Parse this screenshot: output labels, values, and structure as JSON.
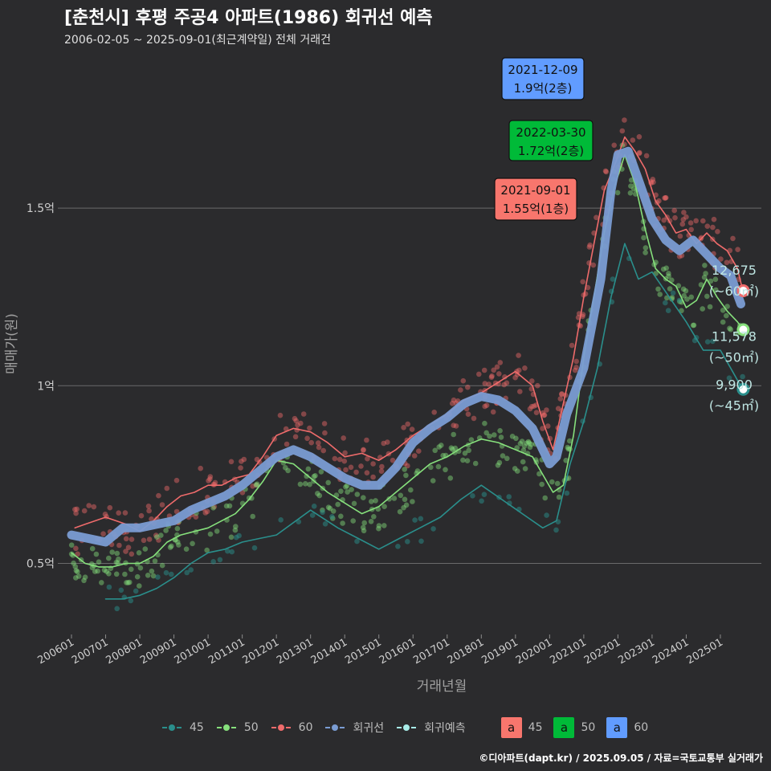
{
  "header": {
    "title": "[춘천시] 후평 주공4 아파트(1986) 회귀선 예측",
    "subtitle": "2006-02-05 ~ 2025-09-01(최근계약일) 전체 거래건"
  },
  "credit": "©디아파트(dapt.kr) / 2025.09.05 / 자료=국토교통부 실거래가",
  "legend": {
    "lines": [
      {
        "label": "45",
        "color": "#2a8f8c"
      },
      {
        "label": "50",
        "color": "#86e07c"
      },
      {
        "label": "60",
        "color": "#ef6b6b"
      },
      {
        "label": "회귀선",
        "color": "#7a9cd3"
      },
      {
        "label": "회귀예측",
        "color": "#a8ece8"
      }
    ],
    "boxes": [
      {
        "glyph": "a",
        "label": "45",
        "color": "#f8766d"
      },
      {
        "glyph": "a",
        "label": "50",
        "color": "#00ba38"
      },
      {
        "glyph": "a",
        "label": "60",
        "color": "#619cff"
      }
    ]
  },
  "chart_data": {
    "type": "line",
    "xlabel": "거래년월",
    "ylabel": "매매가(원)",
    "x_range": [
      2005.6,
      2026.2
    ],
    "ylim": [
      0.3,
      1.95
    ],
    "y_ticks": [
      {
        "value": 0.5,
        "label": "0.5억"
      },
      {
        "value": 1.0,
        "label": "1억"
      },
      {
        "value": 1.5,
        "label": "1.5억"
      }
    ],
    "x_ticks": [
      {
        "value": 2006,
        "label": "200601"
      },
      {
        "value": 2007,
        "label": "200701"
      },
      {
        "value": 2008,
        "label": "200801"
      },
      {
        "value": 2009,
        "label": "200901"
      },
      {
        "value": 2010,
        "label": "201001"
      },
      {
        "value": 2011,
        "label": "201101"
      },
      {
        "value": 2012,
        "label": "201201"
      },
      {
        "value": 2013,
        "label": "201301"
      },
      {
        "value": 2014,
        "label": "201401"
      },
      {
        "value": 2015,
        "label": "201501"
      },
      {
        "value": 2016,
        "label": "201601"
      },
      {
        "value": 2017,
        "label": "201701"
      },
      {
        "value": 2018,
        "label": "201801"
      },
      {
        "value": 2019,
        "label": "201901"
      },
      {
        "value": 2020,
        "label": "202001"
      },
      {
        "value": 2021,
        "label": "202101"
      },
      {
        "value": 2022,
        "label": "202201"
      },
      {
        "value": 2023,
        "label": "202301"
      },
      {
        "value": 2024,
        "label": "202401"
      },
      {
        "value": 2025,
        "label": "202501"
      }
    ],
    "series": [
      {
        "name": "60",
        "color": "#ef6b6b",
        "x": [
          2006.1,
          2006.4,
          2006.7,
          2007.0,
          2007.3,
          2007.6,
          2008.0,
          2008.4,
          2008.8,
          2009.2,
          2009.6,
          2010.0,
          2010.4,
          2010.8,
          2011.2,
          2011.6,
          2012.0,
          2012.5,
          2013.0,
          2013.5,
          2014.0,
          2014.5,
          2015.0,
          2015.5,
          2016.0,
          2016.5,
          2017.0,
          2017.5,
          2018.0,
          2018.5,
          2019.0,
          2019.5,
          2019.8,
          2020.1,
          2020.4,
          2020.7,
          2021.0,
          2021.3,
          2021.6,
          2021.9,
          2022.2,
          2022.5,
          2022.8,
          2023.1,
          2023.4,
          2023.7,
          2024.0,
          2024.3,
          2024.6,
          2024.9,
          2025.2,
          2025.5,
          2025.65
        ],
        "y": [
          0.6,
          0.61,
          0.62,
          0.63,
          0.62,
          0.61,
          0.59,
          0.62,
          0.66,
          0.69,
          0.7,
          0.72,
          0.72,
          0.74,
          0.75,
          0.8,
          0.86,
          0.88,
          0.87,
          0.84,
          0.8,
          0.81,
          0.79,
          0.82,
          0.86,
          0.89,
          0.92,
          0.96,
          0.98,
          1.01,
          1.04,
          1.0,
          0.9,
          0.82,
          0.95,
          1.08,
          1.25,
          1.4,
          1.55,
          1.62,
          1.7,
          1.66,
          1.61,
          1.52,
          1.48,
          1.43,
          1.44,
          1.4,
          1.43,
          1.4,
          1.38,
          1.33,
          1.27
        ]
      },
      {
        "name": "50",
        "color": "#86e07c",
        "x": [
          2006.0,
          2006.4,
          2006.8,
          2007.2,
          2007.6,
          2008.0,
          2008.4,
          2008.8,
          2009.2,
          2009.6,
          2010.0,
          2010.4,
          2010.8,
          2011.2,
          2011.6,
          2012.0,
          2012.5,
          2013.0,
          2013.5,
          2014.0,
          2014.5,
          2015.0,
          2015.5,
          2016.0,
          2016.5,
          2017.0,
          2017.5,
          2018.0,
          2018.5,
          2019.0,
          2019.5,
          2019.8,
          2020.1,
          2020.4,
          2020.7,
          2021.0,
          2021.3,
          2021.6,
          2021.9,
          2022.2,
          2022.5,
          2022.8,
          2023.1,
          2023.4,
          2023.7,
          2024.0,
          2024.3,
          2024.6,
          2024.9,
          2025.2,
          2025.5,
          2025.65
        ],
        "y": [
          0.53,
          0.5,
          0.49,
          0.49,
          0.5,
          0.5,
          0.52,
          0.56,
          0.58,
          0.59,
          0.6,
          0.62,
          0.64,
          0.68,
          0.73,
          0.79,
          0.78,
          0.74,
          0.7,
          0.67,
          0.64,
          0.66,
          0.7,
          0.74,
          0.78,
          0.8,
          0.83,
          0.85,
          0.84,
          0.82,
          0.8,
          0.75,
          0.7,
          0.72,
          0.86,
          1.08,
          1.25,
          1.43,
          1.56,
          1.65,
          1.57,
          1.44,
          1.33,
          1.3,
          1.28,
          1.22,
          1.24,
          1.3,
          1.25,
          1.21,
          1.18,
          1.16
        ]
      },
      {
        "name": "45",
        "color": "#2a8f8c",
        "x": [
          2007.0,
          2007.5,
          2008.0,
          2008.5,
          2009.0,
          2009.5,
          2010.0,
          2010.5,
          2011.0,
          2011.5,
          2012.0,
          2013.0,
          2013.8,
          2014.4,
          2015.0,
          2015.6,
          2016.2,
          2016.8,
          2017.4,
          2018.0,
          2018.6,
          2019.2,
          2019.8,
          2020.2,
          2020.6,
          2021.0,
          2021.4,
          2021.8,
          2022.2,
          2022.6,
          2023.0,
          2023.5,
          2024.0,
          2024.5,
          2025.0,
          2025.3,
          2025.65
        ],
        "y": [
          0.4,
          0.4,
          0.41,
          0.43,
          0.46,
          0.5,
          0.53,
          0.54,
          0.56,
          0.57,
          0.58,
          0.65,
          0.6,
          0.57,
          0.54,
          0.57,
          0.6,
          0.63,
          0.68,
          0.72,
          0.68,
          0.64,
          0.6,
          0.62,
          0.78,
          0.9,
          1.05,
          1.25,
          1.4,
          1.3,
          1.32,
          1.25,
          1.18,
          1.1,
          1.1,
          1.05,
          0.99
        ]
      },
      {
        "name": "회귀선",
        "color": "#7a9cd3",
        "x": [
          2006.0,
          2006.5,
          2007.0,
          2007.5,
          2008.0,
          2008.5,
          2009.0,
          2009.5,
          2010.0,
          2010.5,
          2011.0,
          2011.5,
          2012.0,
          2012.5,
          2013.0,
          2013.5,
          2014.0,
          2014.5,
          2015.0,
          2015.5,
          2016.0,
          2016.5,
          2017.0,
          2017.5,
          2018.0,
          2018.5,
          2019.0,
          2019.5,
          2019.8,
          2020.0,
          2020.2,
          2020.5,
          2021.0,
          2021.5,
          2021.8,
          2022.0,
          2022.3,
          2022.6,
          2023.0,
          2023.4,
          2023.8,
          2024.2,
          2024.6,
          2025.0,
          2025.3,
          2025.6
        ],
        "y": [
          0.58,
          0.57,
          0.56,
          0.6,
          0.6,
          0.61,
          0.62,
          0.65,
          0.67,
          0.69,
          0.72,
          0.76,
          0.8,
          0.82,
          0.8,
          0.77,
          0.74,
          0.72,
          0.72,
          0.77,
          0.84,
          0.88,
          0.91,
          0.95,
          0.97,
          0.96,
          0.93,
          0.88,
          0.82,
          0.78,
          0.8,
          0.92,
          1.05,
          1.3,
          1.55,
          1.65,
          1.66,
          1.58,
          1.47,
          1.41,
          1.38,
          1.41,
          1.37,
          1.33,
          1.31,
          1.23
        ]
      }
    ],
    "endpoints": [
      {
        "x": 2025.67,
        "y": 1.2675,
        "value": "12,675",
        "area": "(~60㎡)",
        "color": "#ef6b6b"
      },
      {
        "x": 2025.67,
        "y": 1.1578,
        "value": "11,578",
        "area": "(~50㎡)",
        "color": "#86e07c"
      },
      {
        "x": 2025.67,
        "y": 0.99,
        "value": "9,900",
        "area": "(~45㎡)",
        "color": "#2a8f8c"
      }
    ],
    "annotations": [
      {
        "date": "2021-12-09",
        "price": "1.9억(2층)",
        "x": 2021.94,
        "y": 1.9,
        "color": "#619cff"
      },
      {
        "date": "2022-03-30",
        "price": "1.72억(2층)",
        "x": 2022.25,
        "y": 1.72,
        "color": "#00ba38"
      },
      {
        "date": "2021-09-01",
        "price": "1.55억(1층)",
        "x": 2021.67,
        "y": 1.55,
        "color": "#f8766d"
      }
    ]
  }
}
